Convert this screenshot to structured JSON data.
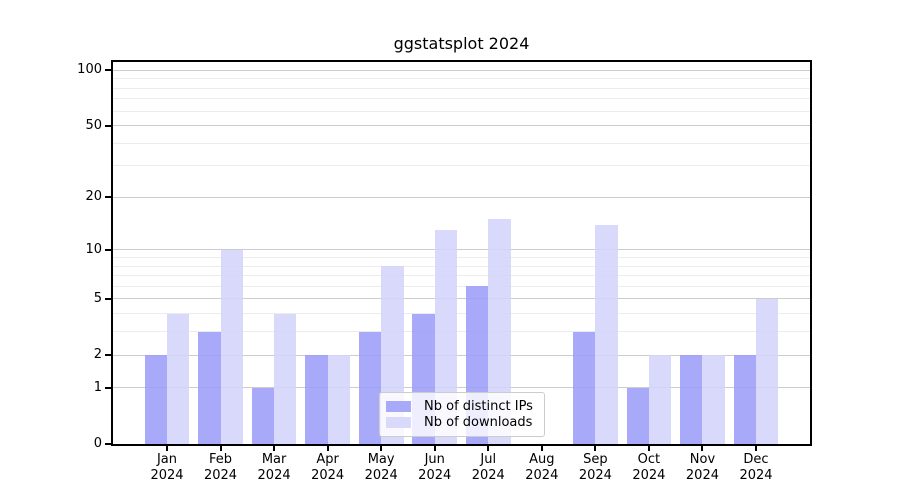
{
  "title": "ggstatsplot 2024",
  "legend": {
    "items": [
      {
        "label": "Nb of distinct IPs",
        "color": "rgba(157,157,248,0.88)"
      },
      {
        "label": "Nb of downloads",
        "color": "rgba(212,212,250,0.88)"
      }
    ]
  },
  "axes": {
    "y_tick_values": [
      0,
      1,
      2,
      5,
      10,
      20,
      50,
      100
    ],
    "y_major_gridlines": [
      1,
      2,
      5,
      10,
      20,
      50,
      100
    ],
    "y_minor_gridlines": [
      3,
      4,
      6,
      7,
      8,
      9,
      30,
      40,
      60,
      70,
      80,
      90
    ],
    "months": [
      "Jan",
      "Feb",
      "Mar",
      "Apr",
      "May",
      "Jun",
      "Jul",
      "Aug",
      "Sep",
      "Oct",
      "Nov",
      "Dec"
    ],
    "year": "2024"
  },
  "chart_data": {
    "type": "bar",
    "title": "ggstatsplot 2024",
    "categories": [
      "Jan 2024",
      "Feb 2024",
      "Mar 2024",
      "Apr 2024",
      "May 2024",
      "Jun 2024",
      "Jul 2024",
      "Aug 2024",
      "Sep 2024",
      "Oct 2024",
      "Nov 2024",
      "Dec 2024"
    ],
    "series": [
      {
        "name": "Nb of distinct IPs",
        "values": [
          2,
          3,
          1,
          2,
          3,
          4,
          6,
          0,
          3,
          1,
          2,
          2
        ],
        "color": "rgba(157,157,248,0.88)"
      },
      {
        "name": "Nb of downloads",
        "values": [
          4,
          10,
          4,
          2,
          8,
          13,
          15,
          0,
          14,
          2,
          2,
          5
        ],
        "color": "rgba(212,212,250,0.88)"
      }
    ],
    "yscale": "log1p",
    "y_ticks": [
      0,
      1,
      2,
      5,
      10,
      20,
      50,
      100
    ],
    "ylim": [
      0,
      111
    ],
    "xlabel": "",
    "ylabel": "",
    "legend_position": "lower center",
    "grid": true
  },
  "colors": {
    "major_grid": "#cccccc",
    "minor_grid": "#ececec",
    "axis": "#000000",
    "background": "#ffffff",
    "legend_bg": "rgba(255,255,255,0.8)",
    "legend_border": "#cccccc"
  }
}
